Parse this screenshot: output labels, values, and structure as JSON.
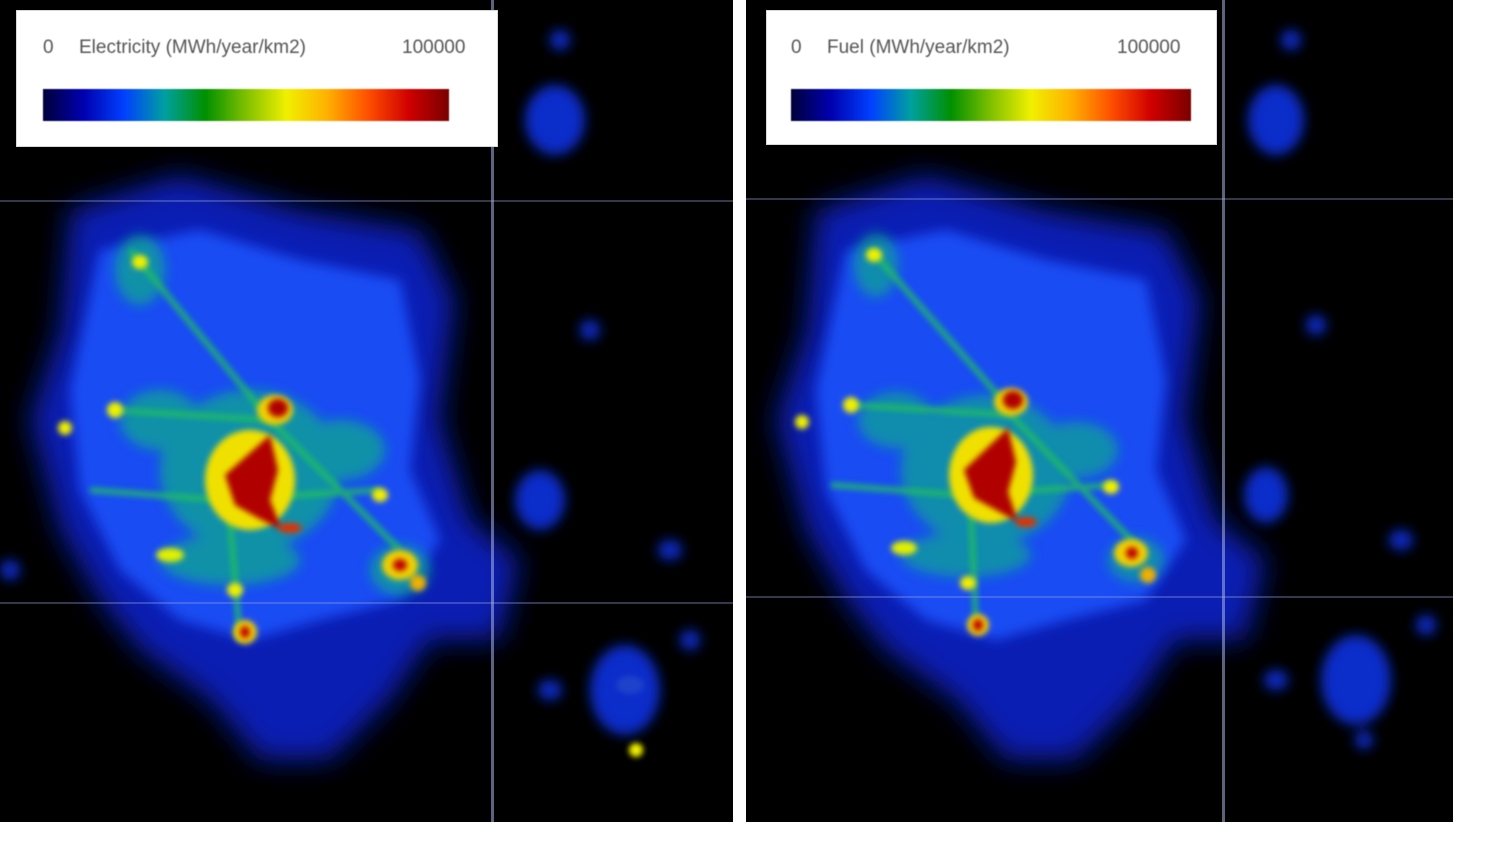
{
  "maps": [
    {
      "legend": {
        "min": "0",
        "title": "Electricity (MWh/year/km2)",
        "max": "100000"
      },
      "colorbar": [
        "#00003a",
        "#0000b0",
        "#0040ff",
        "#00a0a0",
        "#009000",
        "#80c000",
        "#f0f000",
        "#ffb000",
        "#ff5000",
        "#d00000",
        "#7a0000"
      ]
    },
    {
      "legend": {
        "min": "0",
        "title": "Fuel (MWh/year/km2)",
        "max": "100000"
      },
      "colorbar": [
        "#00003a",
        "#0000b0",
        "#0040ff",
        "#00a0a0",
        "#009000",
        "#80c000",
        "#f0f000",
        "#ffb000",
        "#ff5000",
        "#d00000",
        "#7a0000"
      ]
    }
  ]
}
